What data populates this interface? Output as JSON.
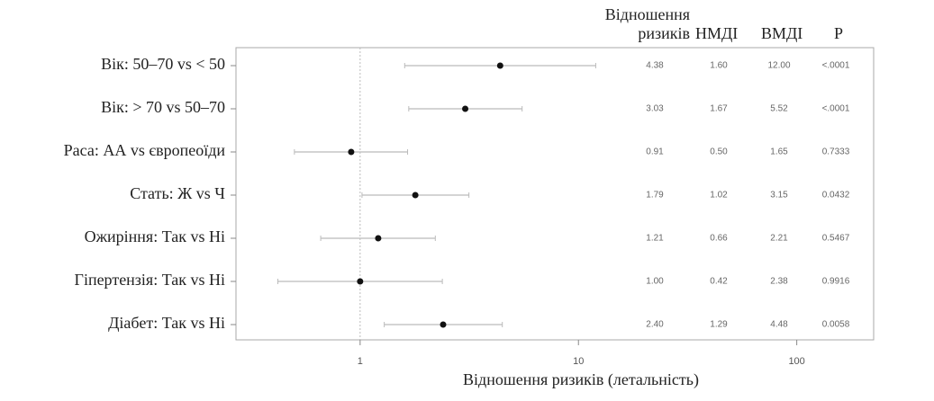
{
  "chart_data": {
    "type": "forest",
    "x_label": "Відношення ризиків (летальність)",
    "categories": [
      "Вік: 50–70 vs < 50",
      "Вік: > 70 vs 50–70",
      "Раса: АА vs європеоїди",
      "Стать: Ж vs Ч",
      "Ожиріння: Так vs Ні",
      "Гіпертензія: Так vs Ні",
      "Діабет: Так vs Ні"
    ],
    "series": [
      {
        "name": "Відношення ризиків",
        "color": "#111111",
        "values": [
          4.38,
          3.03,
          0.91,
          1.79,
          1.21,
          1.0,
          2.4
        ],
        "value_labels": [
          "4.38",
          "3.03",
          "0.91",
          "1.79",
          "1.21",
          "1.00",
          "2.40"
        ]
      },
      {
        "name": "НМДІ",
        "values": [
          1.6,
          1.67,
          0.5,
          1.02,
          0.66,
          0.42,
          1.29
        ],
        "value_labels": [
          "1.60",
          "1.67",
          "0.50",
          "1.02",
          "0.66",
          "0.42",
          "1.29"
        ]
      },
      {
        "name": "ВМДІ",
        "values": [
          12.0,
          5.52,
          1.65,
          3.15,
          2.21,
          2.38,
          4.48
        ],
        "value_labels": [
          "12.00",
          "5.52",
          "1.65",
          "3.15",
          "2.21",
          "2.38",
          "4.48"
        ]
      }
    ],
    "p": {
      "name": "P",
      "labels": [
        "<.0001",
        "<.0001",
        "0.7333",
        "0.0432",
        "0.5467",
        "0.9916",
        "0.0058"
      ]
    },
    "log_x": true,
    "xlim": [
      0.27,
      225
    ],
    "xticks": [
      1,
      10,
      100
    ],
    "reference": 1
  }
}
